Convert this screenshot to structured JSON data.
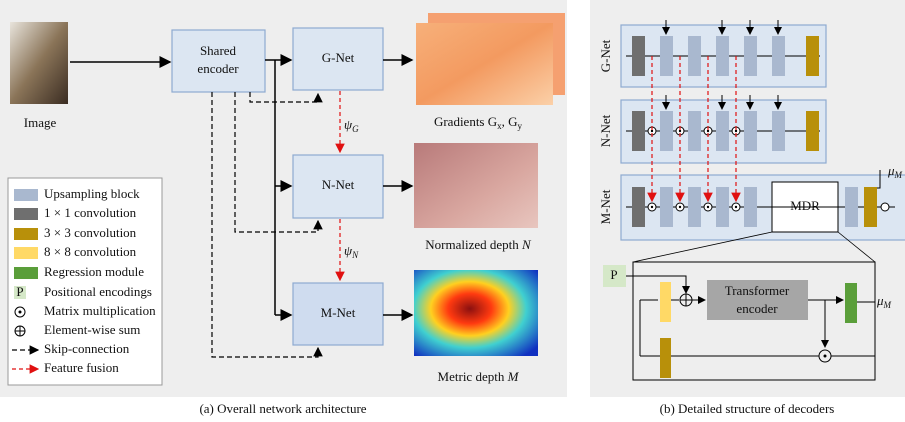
{
  "panel_a": {
    "image_label": "Image",
    "encoder": [
      "Shared",
      "encoder"
    ],
    "g_net": "G-Net",
    "n_net": "N-Net",
    "m_net": "M-Net",
    "psi_g": [
      "ψ",
      "G"
    ],
    "psi_n": [
      "ψ",
      "N"
    ],
    "gradients": [
      "Gradients G",
      "x",
      ", G",
      "y"
    ],
    "normalized": [
      "Normalized depth ",
      "N"
    ],
    "metric": [
      "Metric depth ",
      "M"
    ],
    "caption": "(a) Overall network architecture"
  },
  "legend": [
    "Upsampling block",
    "1 × 1 convolution",
    "3 × 3 convolution",
    "8 × 8 convolution",
    "Regression module",
    "P",
    "Positional encodings",
    "Matrix multiplication",
    "Element-wise sum",
    "Skip-connection",
    "Feature fusion"
  ],
  "panel_b": {
    "rows": [
      "G-Net",
      "N-Net",
      "M-Net"
    ],
    "mdr": "MDR",
    "mu_top": [
      "μ",
      "M"
    ],
    "p": "P",
    "transformer": [
      "Transformer",
      "encoder"
    ],
    "mu_out": [
      "μ",
      "M"
    ],
    "caption": "(b) Detailed structure of decoders"
  }
}
